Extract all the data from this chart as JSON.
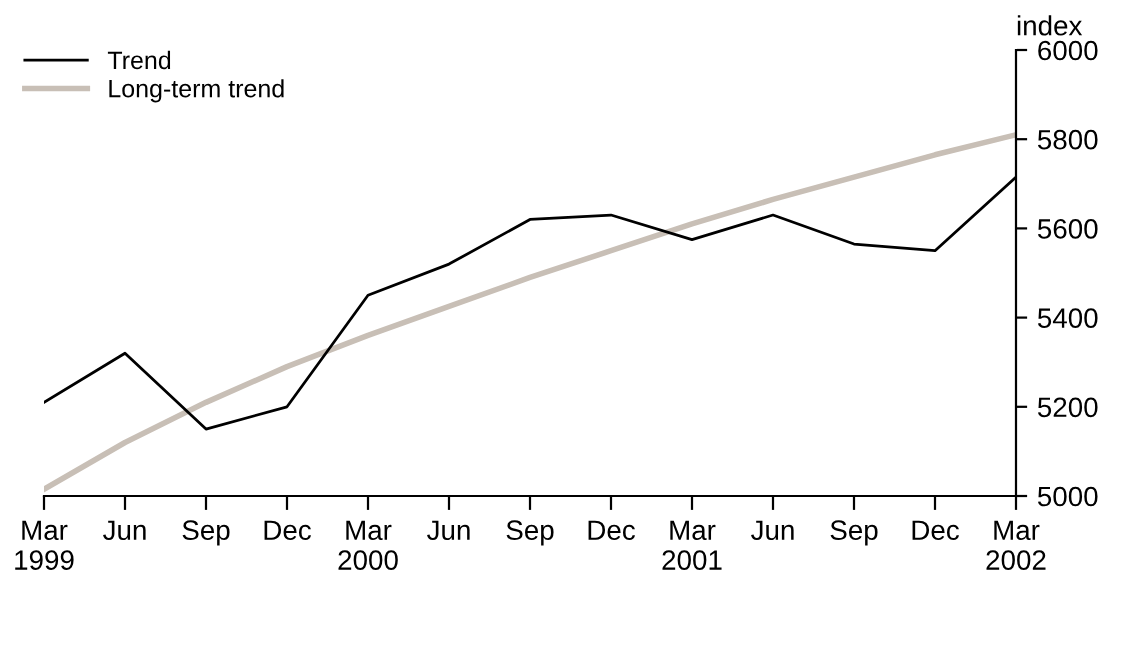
{
  "chart_data": {
    "type": "line",
    "ylabel": "index",
    "categories": [
      "Mar\n1999",
      "Jun",
      "Sep",
      "Dec",
      "Mar\n2000",
      "Jun",
      "Sep",
      "Dec",
      "Mar\n2001",
      "Jun",
      "Sep",
      "Dec",
      "Mar\n2002"
    ],
    "series": [
      {
        "name": "Trend",
        "color": "#000000",
        "values": [
          5210,
          5320,
          5150,
          5200,
          5450,
          5520,
          5620,
          5630,
          5575,
          5630,
          5565,
          5550,
          5715
        ]
      },
      {
        "name": "Long-term trend",
        "color": "#c8bfb6",
        "values": [
          5015,
          5120,
          5210,
          5290,
          5360,
          5425,
          5490,
          5550,
          5610,
          5665,
          5715,
          5765,
          5810
        ]
      }
    ],
    "ylim": [
      5000,
      6000
    ],
    "yticks": [
      5000,
      5200,
      5400,
      5600,
      5800,
      6000
    ],
    "grid": false,
    "legend": "top left",
    "marker": "none",
    "line_style": "solid"
  }
}
